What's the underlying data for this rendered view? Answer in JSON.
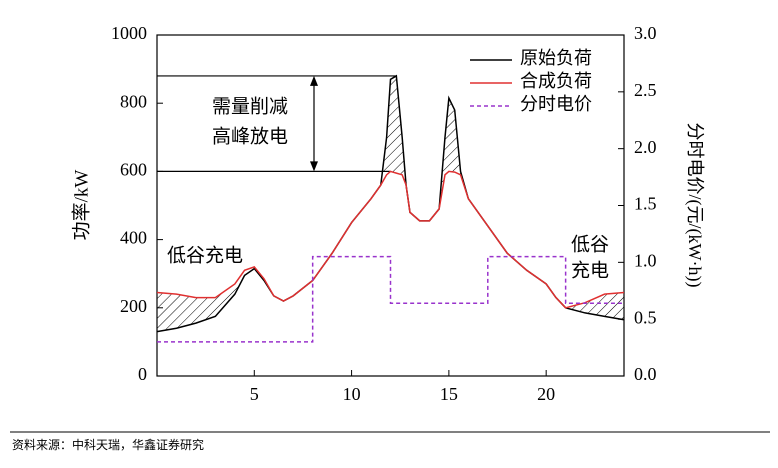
{
  "chart_data": {
    "type": "line",
    "ylabel": "功率/kW",
    "y2label": "分时电价/(元/(kW·h))",
    "xlim": [
      0,
      24
    ],
    "xticks": [
      5,
      10,
      15,
      20
    ],
    "ylim": [
      0,
      1000
    ],
    "yticks": [
      0,
      200,
      400,
      600,
      800,
      1000
    ],
    "y2lim": [
      0,
      3
    ],
    "y2ticks": [
      {
        "value": 0,
        "label": "0.0"
      },
      0.5,
      {
        "value": 1,
        "label": "1.0"
      },
      1.5,
      {
        "value": 2,
        "label": "2.0"
      },
      2.5,
      {
        "value": 3,
        "label": "3.0"
      }
    ],
    "legend": "upper right",
    "series": [
      {
        "name": "原始负荷",
        "color": "#000000",
        "x": [
          0,
          1,
          2,
          3,
          4,
          4.5,
          5,
          5.5,
          6,
          6.5,
          7,
          8,
          9,
          10,
          11,
          11.5,
          11.8,
          12,
          12.3,
          12.6,
          12.8,
          13,
          13.5,
          14,
          14.5,
          14.8,
          15,
          15.3,
          15.6,
          16,
          17,
          18,
          19,
          20,
          20.5,
          21,
          22,
          23,
          24
        ],
        "values": [
          130,
          140,
          155,
          175,
          240,
          295,
          315,
          280,
          235,
          220,
          235,
          280,
          360,
          450,
          520,
          560,
          700,
          870,
          880,
          700,
          560,
          480,
          455,
          455,
          490,
          700,
          815,
          780,
          600,
          520,
          440,
          360,
          310,
          270,
          230,
          200,
          185,
          175,
          165
        ]
      },
      {
        "name": "合成负荷",
        "color": "#e03030",
        "x": [
          0,
          1,
          2,
          3,
          4,
          4.5,
          5,
          5.5,
          6,
          6.5,
          7,
          8,
          9,
          10,
          11,
          11.5,
          11.8,
          12,
          12.3,
          12.6,
          12.8,
          13,
          13.5,
          14,
          14.5,
          14.8,
          15,
          15.3,
          15.6,
          16,
          17,
          18,
          19,
          20,
          20.5,
          21,
          22,
          23,
          24
        ],
        "values": [
          245,
          240,
          230,
          230,
          270,
          310,
          320,
          285,
          235,
          220,
          235,
          280,
          360,
          450,
          520,
          560,
          590,
          600,
          595,
          590,
          560,
          480,
          455,
          455,
          490,
          590,
          600,
          598,
          590,
          520,
          440,
          360,
          310,
          270,
          230,
          200,
          215,
          240,
          245
        ]
      },
      {
        "name": "分时电价",
        "color": "#9933cc",
        "axis": "y2",
        "dashed": true,
        "x": [
          0,
          8,
          8,
          12,
          12,
          17,
          17,
          21,
          21,
          24
        ],
        "values": [
          0.3,
          0.3,
          1.05,
          1.05,
          0.64,
          0.64,
          1.05,
          1.05,
          0.64,
          0.64
        ]
      }
    ],
    "reference_lines": [
      {
        "y": 880,
        "x": [
          0,
          12.3
        ]
      },
      {
        "y": 600,
        "x": [
          0,
          12
        ]
      }
    ],
    "annotations": [
      "需量削减",
      "高峰放电",
      "低谷充电",
      "低谷",
      "充电"
    ],
    "source": "资料来源：中科天瑞，华鑫证券研究"
  }
}
